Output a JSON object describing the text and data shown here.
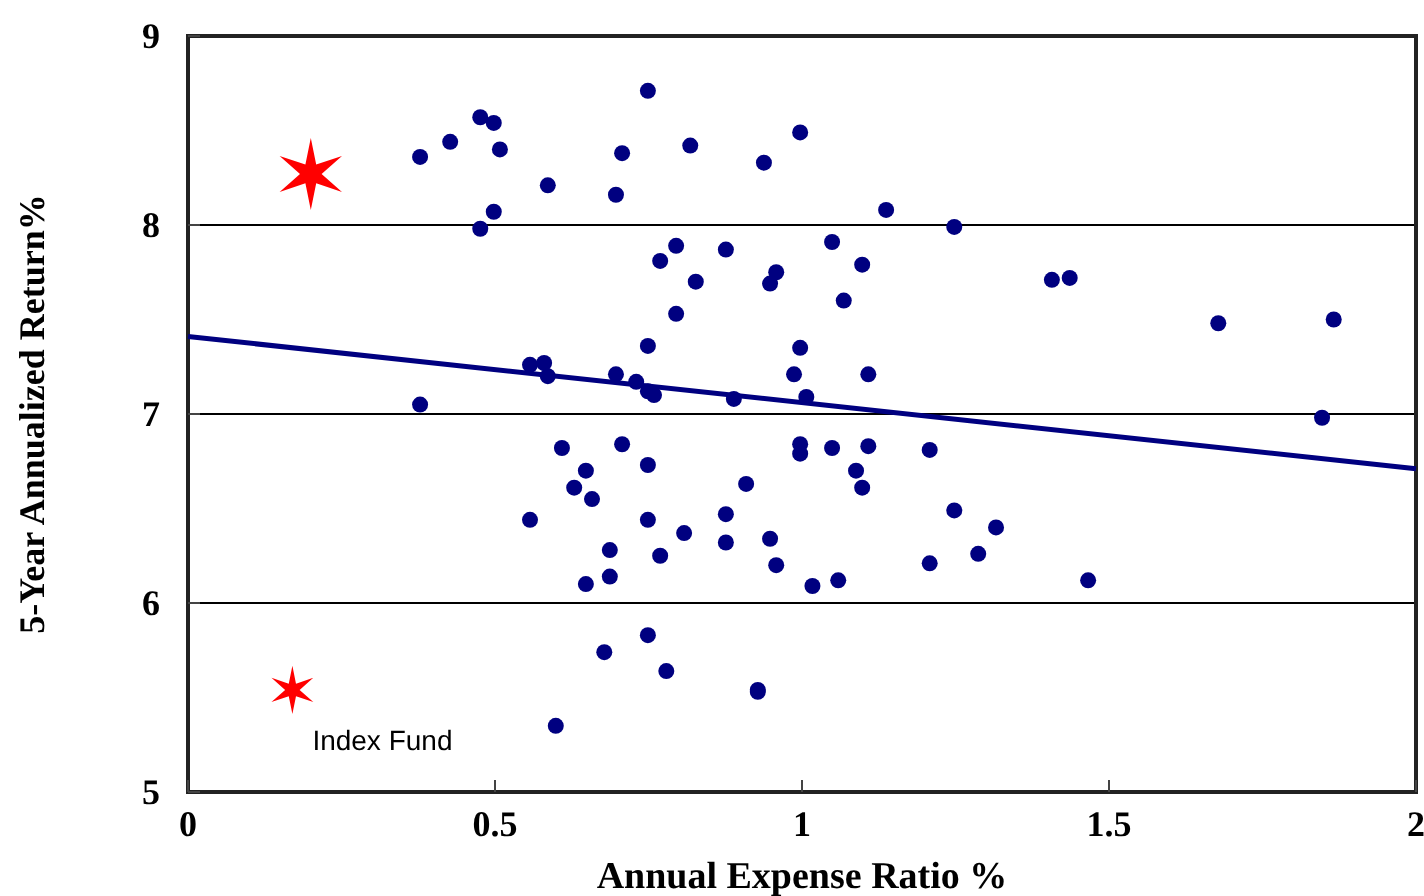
{
  "chart_data": {
    "type": "scatter",
    "xlabel": "Annual Expense Ratio %",
    "ylabel": "5-Year Annualized Return%",
    "xlim": [
      0,
      2
    ],
    "ylim": [
      5,
      9
    ],
    "xticks": [
      0,
      0.5,
      1,
      1.5,
      2
    ],
    "yticks": [
      5,
      6,
      7,
      8,
      9
    ],
    "grid": "y",
    "annotations": [
      {
        "text": "Index Fund",
        "x": 0.17,
        "y": 5.54
      }
    ],
    "series": [
      {
        "color": "#000080",
        "marker": "circle",
        "x": [
          0.378,
          0.378,
          0.427,
          0.476,
          0.498,
          0.508,
          0.586,
          0.476,
          0.498,
          0.749,
          0.707,
          0.697,
          0.818,
          0.938,
          0.997,
          0.769,
          0.795,
          0.827,
          0.795,
          0.876,
          0.948,
          0.958,
          0.749,
          0.997,
          0.987,
          0.557,
          0.58,
          0.586,
          0.697,
          0.73,
          0.749,
          0.759,
          0.889,
          1.007,
          1.137,
          1.248,
          1.049,
          1.098,
          1.068,
          1.407,
          1.436,
          1.678,
          1.866,
          1.108,
          1.847,
          0.997,
          0.997,
          1.049,
          1.108,
          1.208,
          1.088,
          1.098,
          1.248,
          1.316,
          1.287,
          1.208,
          1.017,
          1.059,
          1.466,
          0.609,
          0.707,
          0.749,
          0.648,
          0.629,
          0.658,
          0.909,
          0.557,
          0.749,
          0.876,
          0.808,
          0.876,
          0.948,
          0.687,
          0.769,
          0.958,
          0.687,
          0.648,
          0.749,
          0.678,
          0.779,
          0.928,
          0.928,
          0.599
        ],
        "values": [
          8.36,
          7.05,
          8.44,
          8.57,
          8.54,
          8.4,
          8.21,
          7.98,
          8.07,
          8.71,
          8.38,
          8.16,
          8.42,
          8.33,
          8.49,
          7.81,
          7.89,
          7.7,
          7.53,
          7.87,
          7.69,
          7.75,
          7.36,
          7.35,
          7.21,
          7.26,
          7.27,
          7.2,
          7.21,
          7.17,
          7.12,
          7.1,
          7.08,
          7.09,
          8.08,
          7.99,
          7.91,
          7.79,
          7.6,
          7.71,
          7.72,
          7.48,
          7.5,
          7.21,
          6.98,
          6.84,
          6.79,
          6.82,
          6.83,
          6.81,
          6.7,
          6.61,
          6.49,
          6.4,
          6.26,
          6.21,
          6.09,
          6.12,
          6.12,
          6.82,
          6.84,
          6.73,
          6.7,
          6.61,
          6.55,
          6.63,
          6.44,
          6.44,
          6.47,
          6.37,
          6.32,
          6.34,
          6.28,
          6.25,
          6.2,
          6.14,
          6.1,
          5.83,
          5.74,
          5.64,
          5.54,
          5.53,
          5.35
        ]
      },
      {
        "type": "scatter",
        "color": "#ff0000",
        "marker": "cross",
        "x": [
          0.2,
          0.17
        ],
        "values": [
          8.27,
          5.54
        ],
        "sizes": [
          1,
          0.45
        ]
      },
      {
        "type": "line",
        "color": "#000080",
        "line_style": "solid",
        "x": [
          0,
          2
        ],
        "values": [
          7.41,
          6.71
        ]
      }
    ]
  }
}
